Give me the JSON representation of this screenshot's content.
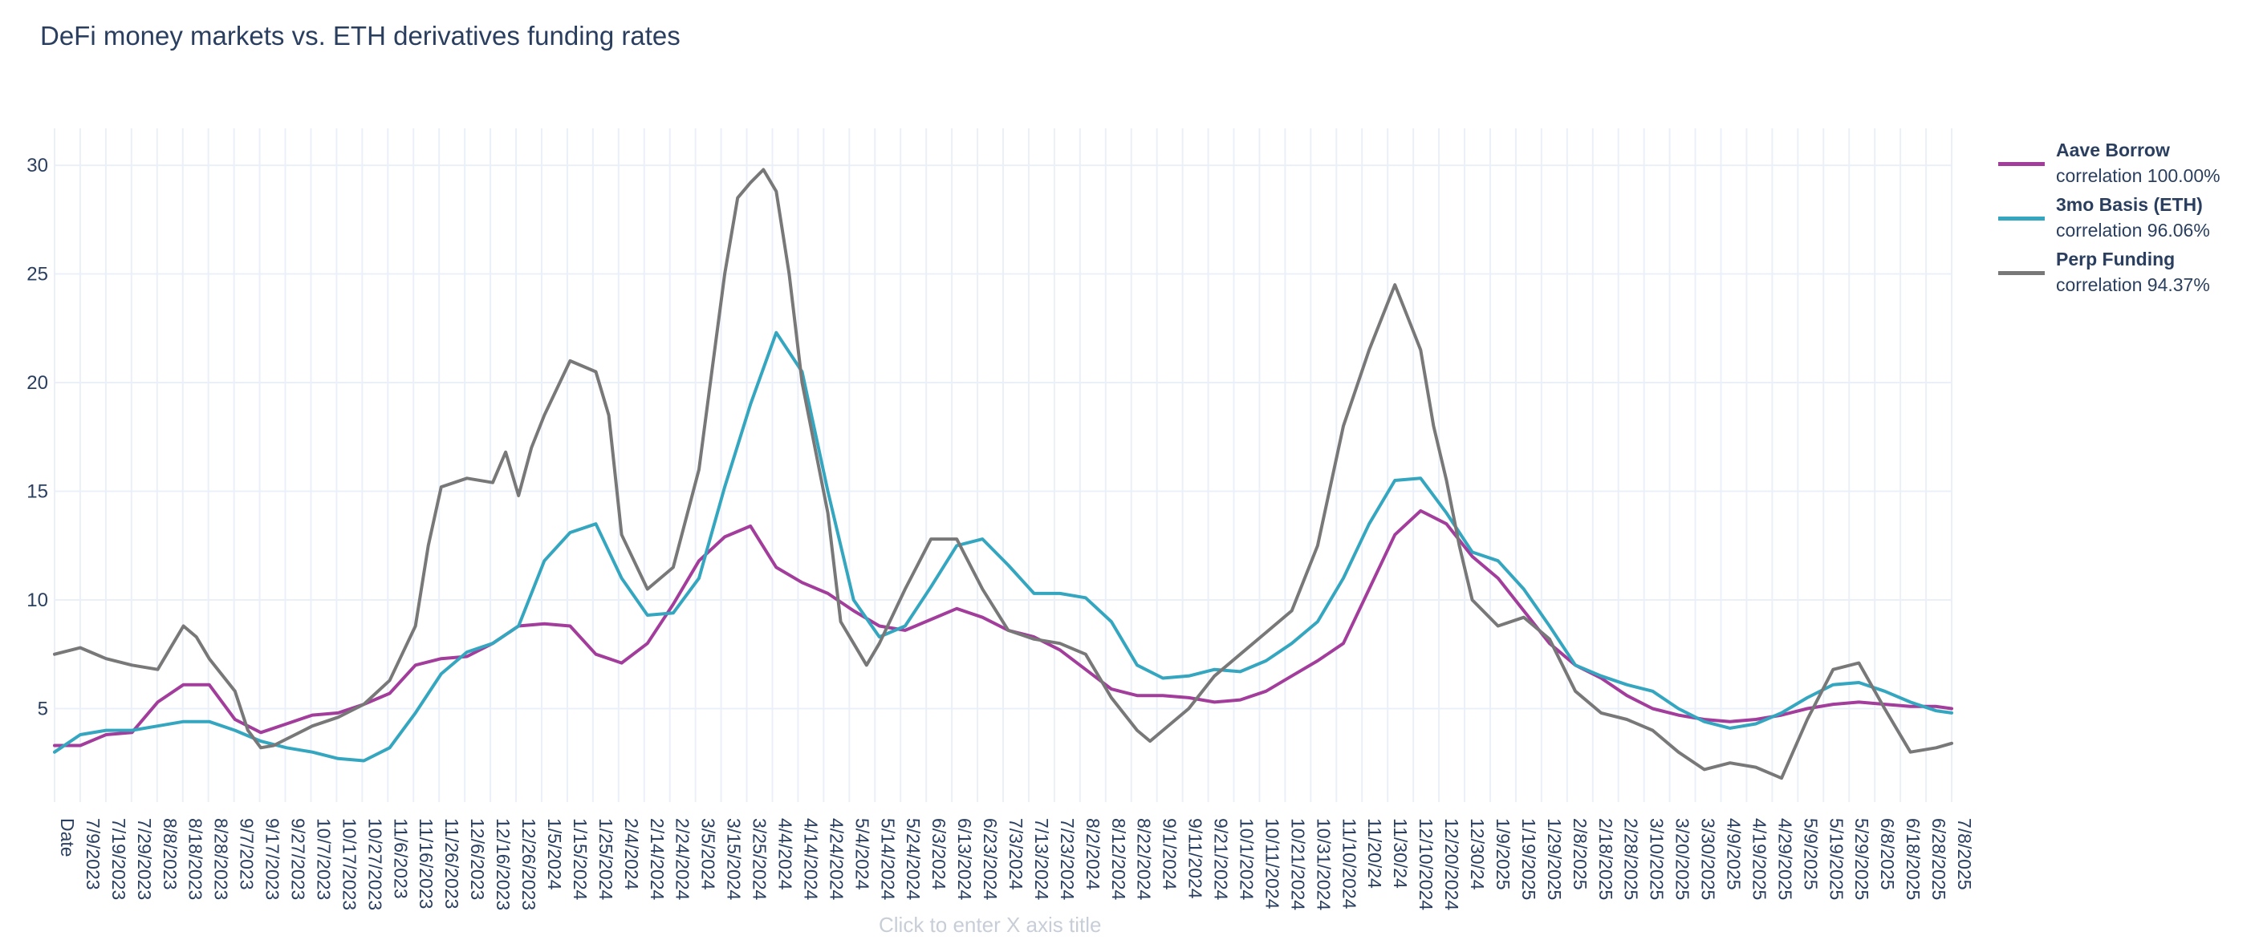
{
  "chart_data": {
    "type": "line",
    "title": "DeFi money markets vs. ETH derivatives funding rates",
    "xlabel": "Click to enter X axis title",
    "ylabel": "",
    "x_range_days": [
      0,
      736
    ],
    "ylim": [
      0.7,
      31.7
    ],
    "y_ticks": [
      5,
      10,
      15,
      20,
      25,
      30
    ],
    "x_ticks": [
      "Date",
      "7/9/2023",
      "7/19/2023",
      "7/29/2023",
      "8/8/2023",
      "8/18/2023",
      "8/28/2023",
      "9/7/2023",
      "9/17/2023",
      "9/27/2023",
      "10/7/2023",
      "10/17/2023",
      "10/27/2023",
      "11/6/2023",
      "11/16/2023",
      "11/26/2023",
      "12/6/2023",
      "12/16/2023",
      "12/26/2023",
      "1/5/2024",
      "1/15/2024",
      "1/25/2024",
      "2/4/2024",
      "2/14/2024",
      "2/24/2024",
      "3/5/2024",
      "3/15/2024",
      "3/25/2024",
      "4/4/2024",
      "4/14/2024",
      "4/24/2024",
      "5/4/2024",
      "5/14/2024",
      "5/24/2024",
      "6/3/2024",
      "6/13/2024",
      "6/23/2024",
      "7/3/2024",
      "7/13/2024",
      "7/23/2024",
      "8/2/2024",
      "8/12/2024",
      "8/22/2024",
      "9/1/2024",
      "9/11/2024",
      "9/21/2024",
      "10/1/2024",
      "10/11/2024",
      "10/21/2024",
      "10/31/2024",
      "11/10/2024",
      "11/20/24",
      "11/30/24",
      "12/10/2024",
      "12/20/2024",
      "12/30/24",
      "1/9/2025",
      "1/19/2025",
      "1/29/2025",
      "2/8/2025",
      "2/18/2025",
      "2/28/2025",
      "3/10/2025",
      "3/20/2025",
      "3/30/2025",
      "4/9/2025",
      "4/19/2025",
      "4/29/2025",
      "5/9/2025",
      "5/19/2025",
      "5/29/2025",
      "6/8/2025",
      "6/18/2025",
      "6/28/2025",
      "7/8/2025"
    ],
    "grid": true,
    "legend_position": "right",
    "series": [
      {
        "name": "Aave Borrow",
        "correlation": "correlation 100.00%",
        "color": "#a23d9c",
        "x": [
          0,
          10,
          20,
          30,
          40,
          50,
          60,
          70,
          80,
          90,
          100,
          110,
          120,
          130,
          140,
          150,
          160,
          170,
          180,
          190,
          200,
          210,
          220,
          230,
          240,
          250,
          260,
          270,
          280,
          290,
          300,
          310,
          320,
          330,
          340,
          350,
          360,
          370,
          380,
          390,
          400,
          410,
          420,
          430,
          440,
          450,
          460,
          470,
          480,
          490,
          500,
          510,
          520,
          530,
          540,
          550,
          560,
          570,
          580,
          590,
          600,
          610,
          620,
          630,
          640,
          650,
          660,
          670,
          680,
          690,
          700,
          710,
          720,
          730,
          736
        ],
        "y": [
          3.3,
          3.3,
          3.8,
          3.9,
          5.3,
          6.1,
          6.1,
          4.5,
          3.9,
          4.3,
          4.7,
          4.8,
          5.2,
          5.7,
          7.0,
          7.3,
          7.4,
          8.0,
          8.8,
          8.9,
          8.8,
          7.5,
          7.1,
          8.0,
          9.8,
          11.8,
          12.9,
          13.4,
          11.5,
          10.8,
          10.3,
          9.5,
          8.8,
          8.6,
          9.1,
          9.6,
          9.2,
          8.6,
          8.3,
          7.7,
          6.8,
          5.9,
          5.6,
          5.6,
          5.5,
          5.3,
          5.4,
          5.8,
          6.5,
          7.2,
          8.0,
          10.5,
          13.0,
          14.1,
          13.5,
          12.0,
          11.0,
          9.5,
          8.0,
          7.0,
          6.4,
          5.6,
          5.0,
          4.7,
          4.5,
          4.4,
          4.5,
          4.7,
          5.0,
          5.2,
          5.3,
          5.2,
          5.1,
          5.1,
          5.0
        ]
      },
      {
        "name": "3mo Basis (ETH)",
        "correlation": "correlation 96.06%",
        "color": "#35a6bf",
        "x": [
          0,
          10,
          20,
          30,
          40,
          50,
          60,
          70,
          80,
          90,
          100,
          110,
          120,
          130,
          140,
          150,
          160,
          170,
          180,
          190,
          200,
          210,
          220,
          230,
          240,
          250,
          260,
          270,
          280,
          290,
          300,
          310,
          320,
          330,
          340,
          350,
          360,
          370,
          380,
          390,
          400,
          410,
          420,
          430,
          440,
          450,
          460,
          470,
          480,
          490,
          500,
          510,
          520,
          530,
          540,
          550,
          560,
          570,
          580,
          590,
          600,
          610,
          620,
          630,
          640,
          650,
          660,
          670,
          680,
          690,
          700,
          710,
          720,
          730,
          736
        ],
        "y": [
          3.0,
          3.8,
          4.0,
          4.0,
          4.2,
          4.4,
          4.4,
          4.0,
          3.5,
          3.2,
          3.0,
          2.7,
          2.6,
          3.2,
          4.8,
          6.6,
          7.6,
          8.0,
          8.8,
          11.8,
          13.1,
          13.5,
          11.0,
          9.3,
          9.4,
          11.0,
          15.2,
          19.0,
          22.3,
          20.5,
          15.0,
          10.0,
          8.3,
          8.8,
          10.6,
          12.5,
          12.8,
          11.6,
          10.3,
          10.3,
          10.1,
          9.0,
          7.0,
          6.4,
          6.5,
          6.8,
          6.7,
          7.2,
          8.0,
          9.0,
          11.0,
          13.5,
          15.5,
          15.6,
          14.0,
          12.2,
          11.8,
          10.5,
          8.8,
          7.0,
          6.5,
          6.1,
          5.8,
          5.0,
          4.4,
          4.1,
          4.3,
          4.8,
          5.5,
          6.1,
          6.2,
          5.8,
          5.3,
          4.9,
          4.8
        ]
      },
      {
        "name": "Perp Funding",
        "correlation": "correlation 94.37%",
        "color": "#787878",
        "x": [
          0,
          10,
          20,
          30,
          40,
          50,
          55,
          60,
          70,
          75,
          80,
          85,
          90,
          100,
          110,
          120,
          130,
          140,
          145,
          150,
          160,
          170,
          175,
          180,
          185,
          190,
          200,
          210,
          215,
          220,
          230,
          240,
          250,
          255,
          260,
          265,
          270,
          275,
          280,
          285,
          290,
          300,
          305,
          310,
          315,
          320,
          330,
          340,
          350,
          360,
          370,
          380,
          390,
          400,
          410,
          420,
          425,
          430,
          440,
          450,
          460,
          470,
          480,
          490,
          500,
          510,
          520,
          525,
          530,
          535,
          540,
          545,
          550,
          560,
          570,
          580,
          590,
          600,
          610,
          620,
          630,
          640,
          650,
          660,
          670,
          680,
          690,
          700,
          710,
          720,
          730,
          736
        ],
        "y": [
          7.5,
          7.8,
          7.3,
          7.0,
          6.8,
          8.8,
          8.3,
          7.3,
          5.8,
          4.0,
          3.2,
          3.3,
          3.6,
          4.2,
          4.6,
          5.2,
          6.3,
          8.8,
          12.5,
          15.2,
          15.6,
          15.4,
          16.8,
          14.8,
          17.0,
          18.5,
          21.0,
          20.5,
          18.5,
          13.0,
          10.5,
          11.5,
          16.0,
          20.5,
          25.0,
          28.5,
          29.2,
          29.8,
          28.8,
          25.0,
          20.0,
          14.0,
          9.0,
          8.0,
          7.0,
          8.0,
          10.5,
          12.8,
          12.8,
          10.5,
          8.6,
          8.2,
          8.0,
          7.5,
          5.5,
          4.0,
          3.5,
          4.0,
          5.0,
          6.5,
          7.5,
          8.5,
          9.5,
          12.5,
          18.0,
          21.5,
          24.5,
          23.0,
          21.5,
          18.0,
          15.5,
          12.5,
          10.0,
          8.8,
          9.2,
          8.2,
          5.8,
          4.8,
          4.5,
          4.0,
          3.0,
          2.2,
          2.5,
          2.3,
          1.8,
          4.5,
          6.8,
          7.1,
          5.0,
          3.0,
          3.2,
          3.4
        ]
      }
    ]
  }
}
